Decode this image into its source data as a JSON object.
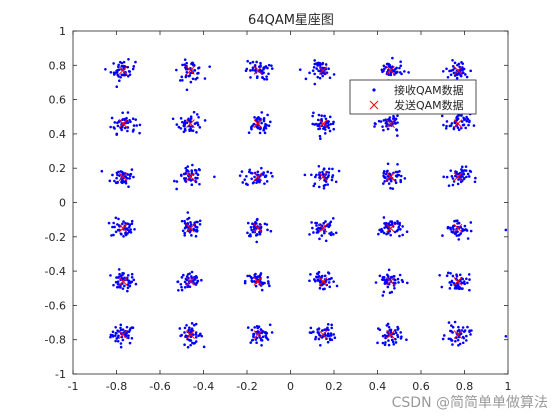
{
  "chart_data": {
    "type": "scatter",
    "title": "64QAM星座图",
    "xlabel": "",
    "ylabel": "",
    "xlim": [
      -1,
      1
    ],
    "ylim": [
      -1,
      1
    ],
    "xticks": [
      -1,
      -0.8,
      -0.6,
      -0.4,
      -0.2,
      0,
      0.2,
      0.4,
      0.6,
      0.8,
      1
    ],
    "yticks": [
      -1,
      -0.8,
      -0.6,
      -0.4,
      -0.2,
      0,
      0.2,
      0.4,
      0.6,
      0.8,
      1
    ],
    "xtick_labels": [
      "-1",
      "-0.8",
      "-0.6",
      "-0.4",
      "-0.2",
      "0",
      "0.2",
      "0.4",
      "0.6",
      "0.8",
      "1"
    ],
    "ytick_labels": [
      "-1",
      "-0.8",
      "-0.6",
      "-0.4",
      "-0.2",
      "0",
      "0.2",
      "0.4",
      "0.6",
      "0.8",
      "1"
    ],
    "grid": false,
    "legend_position": "top-right",
    "series": [
      {
        "name": "接收QAM数据",
        "marker": "dot",
        "color": "#0000ff",
        "points_per_cluster": 45,
        "cluster_spread": 0.028
      },
      {
        "name": "发送QAM数据",
        "marker": "x",
        "color": "#ff0000",
        "x_levels": [
          -0.77,
          -0.46,
          -0.15,
          0.15,
          0.46,
          0.77
        ],
        "y_levels": [
          -0.77,
          -0.46,
          -0.15,
          0.15,
          0.46,
          0.77
        ]
      }
    ],
    "outliers": [
      [
        -0.35,
        0.15
      ],
      [
        0.99,
        -0.16
      ],
      [
        0.99,
        -0.78
      ]
    ]
  },
  "watermark": "CSDN @简简单单做算法"
}
